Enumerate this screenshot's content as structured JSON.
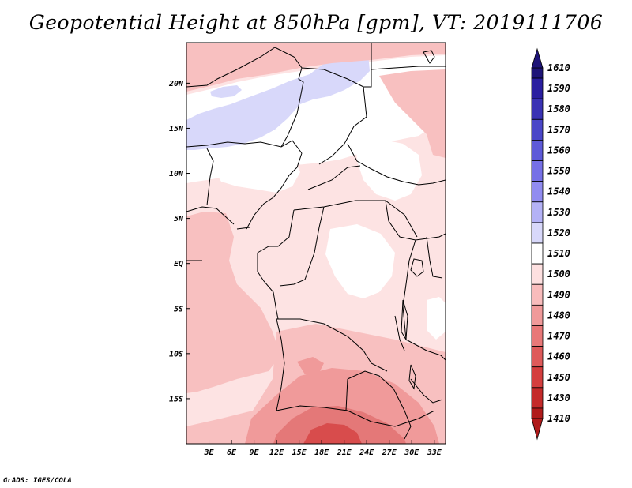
{
  "title": "Geopotential Height at 850hPa [gpm], VT: 2019111706",
  "footer": "GrADS: IGES/COLA",
  "map": {
    "lon_range": [
      0,
      34.5
    ],
    "lat_range": [
      -20,
      24.5
    ],
    "lat_ticks": [
      {
        "value": 20,
        "label": "20N"
      },
      {
        "value": 15,
        "label": "15N"
      },
      {
        "value": 10,
        "label": "10N"
      },
      {
        "value": 5,
        "label": "5N"
      },
      {
        "value": 0,
        "label": "EQ"
      },
      {
        "value": -5,
        "label": "5S"
      },
      {
        "value": -10,
        "label": "10S"
      },
      {
        "value": -15,
        "label": "15S"
      }
    ],
    "lon_ticks": [
      {
        "value": 3,
        "label": "3E"
      },
      {
        "value": 6,
        "label": "6E"
      },
      {
        "value": 9,
        "label": "9E"
      },
      {
        "value": 12,
        "label": "12E"
      },
      {
        "value": 15,
        "label": "15E"
      },
      {
        "value": 18,
        "label": "18E"
      },
      {
        "value": 21,
        "label": "21E"
      },
      {
        "value": 24,
        "label": "24E"
      },
      {
        "value": 27,
        "label": "27E"
      },
      {
        "value": 30,
        "label": "30E"
      },
      {
        "value": 33,
        "label": "33E"
      }
    ]
  },
  "colorbar": {
    "labels": [
      "1610",
      "1590",
      "1580",
      "1570",
      "1560",
      "1550",
      "1540",
      "1530",
      "1520",
      "1510",
      "1500",
      "1490",
      "1480",
      "1470",
      "1460",
      "1450",
      "1430",
      "1410"
    ],
    "colors": [
      "#1e1478",
      "#2a1ea0",
      "#3a32b4",
      "#4a46c8",
      "#5e5ad8",
      "#7670e6",
      "#918cf0",
      "#b4b2f6",
      "#d8d8fa",
      "#ffffff",
      "#fde0e0",
      "#f8bcbc",
      "#f09a9a",
      "#e87878",
      "#de5a5a",
      "#d43e3e",
      "#c42a2a",
      "#b01a1a"
    ]
  }
}
